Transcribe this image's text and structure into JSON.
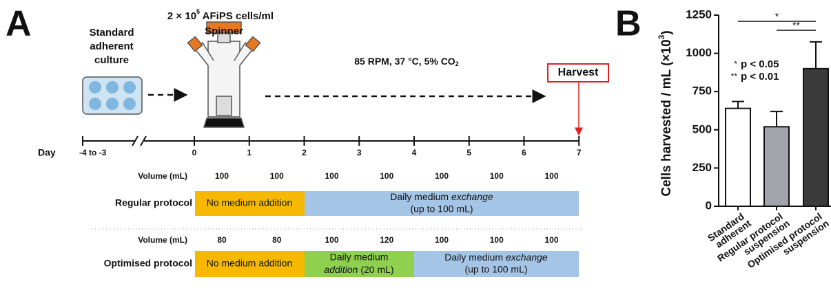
{
  "panel_a": {
    "label": "A",
    "start_lines": [
      "Standard",
      "adherent",
      "culture"
    ],
    "inoculum": [
      "2 × 10",
      "5",
      " AFiPS cells/ml"
    ],
    "vessel": "Spinner",
    "conditions": [
      "85 RPM, 37 °C, 5% CO",
      "2"
    ],
    "harvest": "Harvest",
    "day_label": "Day",
    "days": [
      "-4 to -3",
      "0",
      "1",
      "2",
      "3",
      "4",
      "5",
      "6",
      "7"
    ],
    "regular": {
      "volume_label": "Volume (mL)",
      "volumes": [
        100,
        100,
        100,
        100,
        100,
        100,
        100
      ],
      "label": "Regular protocol",
      "no_addition": "No medium addition",
      "exchange": [
        "Daily medium ",
        "exchange",
        "(up to 100 mL)"
      ]
    },
    "optimised": {
      "volume_label": "Volume (mL)",
      "volumes": [
        80,
        80,
        100,
        120,
        100,
        100,
        100
      ],
      "label": "Optimised protocol",
      "no_addition": "No medium addition",
      "addition": [
        "Daily medium",
        "addition",
        " (20 mL)"
      ],
      "exchange": [
        "Daily medium ",
        "exchange",
        "(up to 100 mL)"
      ]
    }
  },
  "chart_data": {
    "type": "bar",
    "panel_label": "B",
    "ylabel": [
      "Cells harvested / mL (×10",
      "3",
      ")"
    ],
    "categories": [
      [
        "Standard",
        "adherent"
      ],
      [
        "Regular protocol",
        "suspension"
      ],
      [
        "Optimised protocol",
        "suspension"
      ]
    ],
    "values": [
      640,
      520,
      900
    ],
    "errors": [
      45,
      100,
      175
    ],
    "colors": [
      "#ffffff",
      "#a3a3ab",
      "#3a3a3a"
    ],
    "ylim": [
      0,
      1250
    ],
    "yticks": [
      0,
      250,
      500,
      750,
      1000,
      1250
    ],
    "significance": [
      {
        "pair": [
          0,
          2
        ],
        "label": "*"
      },
      {
        "pair": [
          1,
          2
        ],
        "label": "**"
      }
    ],
    "legend": [
      {
        "symbol": "*",
        "text": "p < 0.05"
      },
      {
        "symbol": "**",
        "text": "p < 0.01"
      }
    ]
  }
}
